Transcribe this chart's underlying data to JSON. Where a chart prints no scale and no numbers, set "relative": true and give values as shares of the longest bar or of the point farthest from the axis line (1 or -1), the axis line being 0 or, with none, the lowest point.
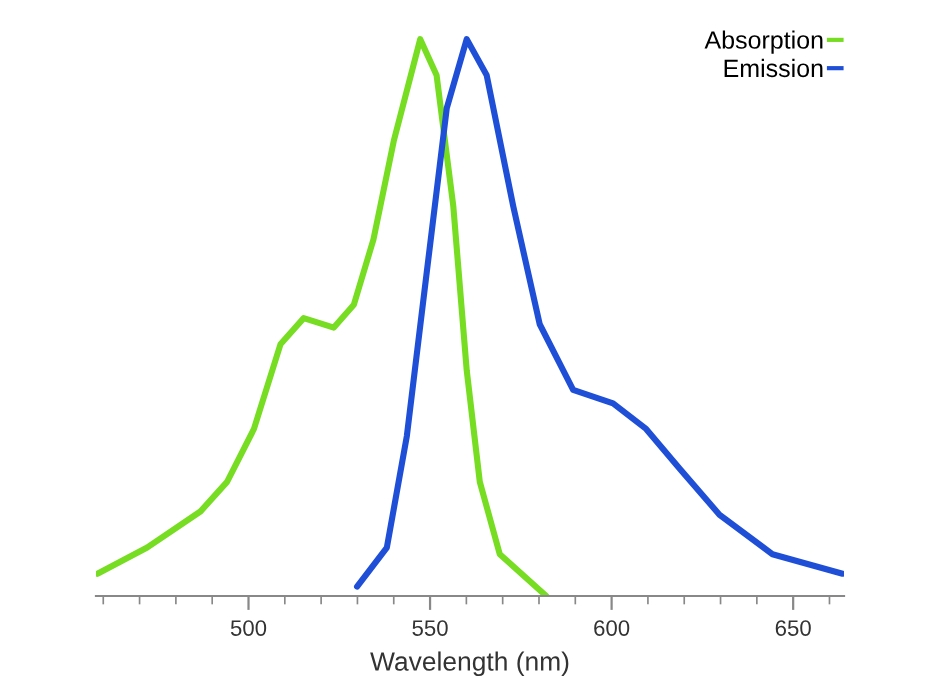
{
  "chart_data": {
    "type": "line",
    "xlabel": "Wavelength (nm)",
    "relative": true,
    "xlim": [
      458,
      664
    ],
    "xticks": [
      500,
      550,
      600,
      650
    ],
    "series": [
      {
        "name": "Absorption",
        "color": "#77dd22",
        "x": [
          458.4,
          472.1,
          486.8,
          494.1,
          501.5,
          508.8,
          515.2,
          523.5,
          529,
          534.4,
          540,
          547.3,
          551.8,
          556.4,
          560.1,
          563.7,
          569.2,
          582
        ],
        "values": [
          0.04,
          0.087,
          0.152,
          0.205,
          0.3,
          0.452,
          0.499,
          0.482,
          0.523,
          0.64,
          0.817,
          1,
          0.935,
          0.7,
          0.405,
          0.205,
          0.075,
          0
        ]
      },
      {
        "name": "Emission",
        "color": "#1f4fd6",
        "x": [
          529.9,
          538.1,
          543.6,
          549.1,
          554.6,
          560.1,
          565.6,
          572.9,
          580.2,
          589.4,
          600.4,
          609.5,
          618.7,
          629.7,
          644.3,
          663.6
        ],
        "values": [
          0.017,
          0.087,
          0.287,
          0.582,
          0.876,
          1,
          0.935,
          0.7,
          0.488,
          0.37,
          0.346,
          0.3,
          0.229,
          0.146,
          0.075,
          0.04
        ]
      }
    ],
    "legend": "top right",
    "grid": false,
    "marker": "none",
    "line_style": "solid"
  }
}
